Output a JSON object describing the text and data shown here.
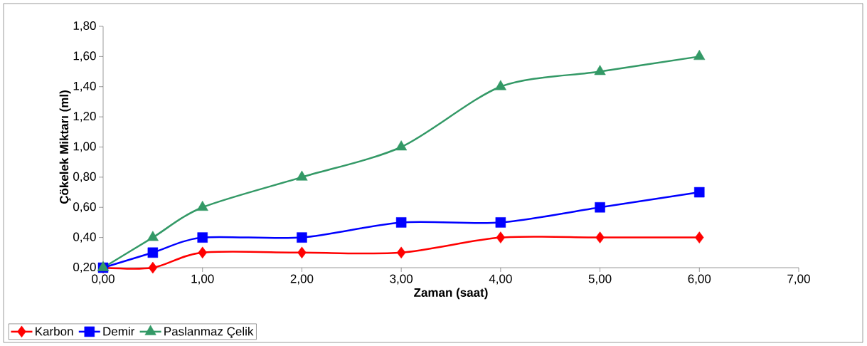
{
  "chart_data": {
    "type": "line",
    "xlabel": "Zaman (saat)",
    "ylabel": "Çökelek Miktarı (ml)",
    "x": [
      0,
      0.5,
      1,
      2,
      3,
      4,
      5,
      6
    ],
    "series": [
      {
        "name": "Karbon",
        "color": "#ff0000",
        "marker": "diamond",
        "values": [
          0.2,
          0.2,
          0.3,
          0.3,
          0.3,
          0.4,
          0.4,
          0.4
        ]
      },
      {
        "name": "Demir",
        "color": "#0000ff",
        "marker": "square",
        "values": [
          0.2,
          0.3,
          0.4,
          0.4,
          0.5,
          0.5,
          0.6,
          0.7
        ]
      },
      {
        "name": "Paslanmaz Çelik",
        "color": "#339966",
        "marker": "triangle",
        "values": [
          0.2,
          0.4,
          0.6,
          0.8,
          1.0,
          1.4,
          1.5,
          1.6
        ]
      }
    ],
    "xlim": [
      0,
      7
    ],
    "xticks": [
      {
        "value": 0,
        "label": "0,00"
      },
      {
        "value": 1,
        "label": "1,00"
      },
      {
        "value": 2,
        "label": "2,00"
      },
      {
        "value": 3,
        "label": "3,00"
      },
      {
        "value": 4,
        "label": "4,00"
      },
      {
        "value": 5,
        "label": "5,00"
      },
      {
        "value": 6,
        "label": "6,00"
      },
      {
        "value": 7,
        "label": "7,00"
      }
    ],
    "ylim": [
      0.2,
      1.8
    ],
    "yticks": [
      {
        "value": 0.2,
        "label": "0,20"
      },
      {
        "value": 0.4,
        "label": "0,40"
      },
      {
        "value": 0.6,
        "label": "0,60"
      },
      {
        "value": 0.8,
        "label": "0,80"
      },
      {
        "value": 1.0,
        "label": "1,00"
      },
      {
        "value": 1.2,
        "label": "1,20"
      },
      {
        "value": 1.4,
        "label": "1,40"
      },
      {
        "value": 1.6,
        "label": "1,60"
      },
      {
        "value": 1.8,
        "label": "1,80"
      }
    ],
    "legend": "bottom left",
    "grid": false,
    "line_style": "solid"
  }
}
